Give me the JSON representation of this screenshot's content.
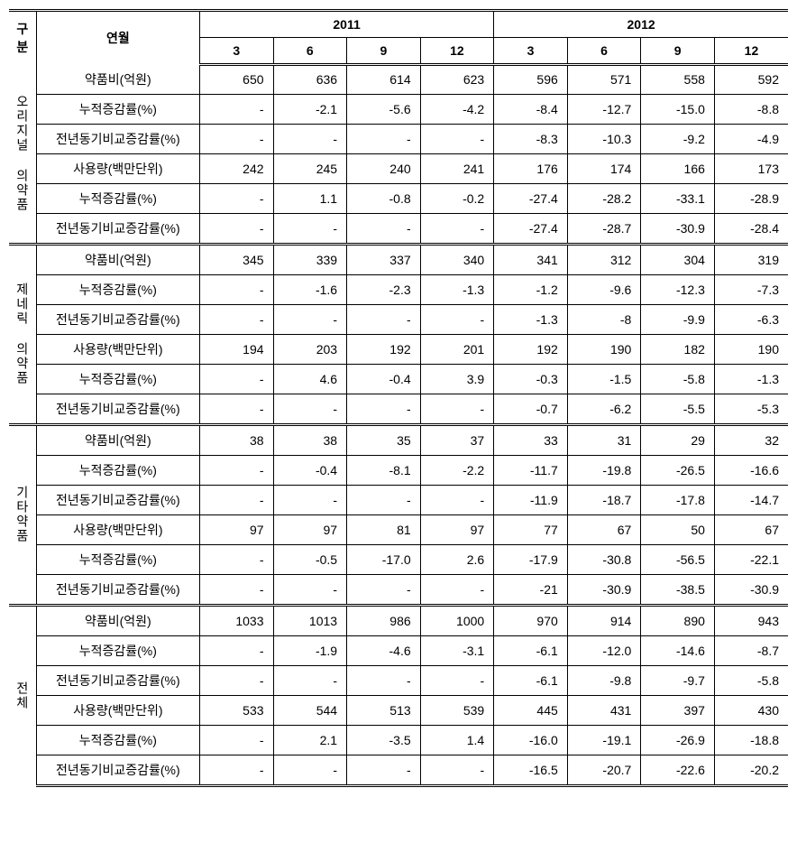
{
  "header": {
    "group_label": "구분",
    "metric_label": "연월",
    "years": [
      "2011",
      "2012"
    ],
    "months": [
      "3",
      "6",
      "9",
      "12",
      "3",
      "6",
      "9",
      "12"
    ]
  },
  "metrics": [
    "약품비(억원)",
    "누적증감률(%)",
    "전년동기비교증감률(%)",
    "사용량(백만단위)",
    "누적증감률(%)",
    "전년동기비교증감률(%)"
  ],
  "groups": [
    {
      "name": "오리지널 의약품",
      "rows": [
        [
          "650",
          "636",
          "614",
          "623",
          "596",
          "571",
          "558",
          "592"
        ],
        [
          "-",
          "-2.1",
          "-5.6",
          "-4.2",
          "-8.4",
          "-12.7",
          "-15.0",
          "-8.8"
        ],
        [
          "-",
          "-",
          "-",
          "-",
          "-8.3",
          "-10.3",
          "-9.2",
          "-4.9"
        ],
        [
          "242",
          "245",
          "240",
          "241",
          "176",
          "174",
          "166",
          "173"
        ],
        [
          "-",
          "1.1",
          "-0.8",
          "-0.2",
          "-27.4",
          "-28.2",
          "-33.1",
          "-28.9"
        ],
        [
          "-",
          "-",
          "-",
          "-",
          "-27.4",
          "-28.7",
          "-30.9",
          "-28.4"
        ]
      ]
    },
    {
      "name": "제네릭 의약품",
      "rows": [
        [
          "345",
          "339",
          "337",
          "340",
          "341",
          "312",
          "304",
          "319"
        ],
        [
          "-",
          "-1.6",
          "-2.3",
          "-1.3",
          "-1.2",
          "-9.6",
          "-12.3",
          "-7.3"
        ],
        [
          "-",
          "-",
          "-",
          "-",
          "-1.3",
          "-8",
          "-9.9",
          "-6.3"
        ],
        [
          "194",
          "203",
          "192",
          "201",
          "192",
          "190",
          "182",
          "190"
        ],
        [
          "-",
          "4.6",
          "-0.4",
          "3.9",
          "-0.3",
          "-1.5",
          "-5.8",
          "-1.3"
        ],
        [
          "-",
          "-",
          "-",
          "-",
          "-0.7",
          "-6.2",
          "-5.5",
          "-5.3"
        ]
      ]
    },
    {
      "name": "기타약품",
      "rows": [
        [
          "38",
          "38",
          "35",
          "37",
          "33",
          "31",
          "29",
          "32"
        ],
        [
          "-",
          "-0.4",
          "-8.1",
          "-2.2",
          "-11.7",
          "-19.8",
          "-26.5",
          "-16.6"
        ],
        [
          "-",
          "-",
          "-",
          "-",
          "-11.9",
          "-18.7",
          "-17.8",
          "-14.7"
        ],
        [
          "97",
          "97",
          "81",
          "97",
          "77",
          "67",
          "50",
          "67"
        ],
        [
          "-",
          "-0.5",
          "-17.0",
          "2.6",
          "-17.9",
          "-30.8",
          "-56.5",
          "-22.1"
        ],
        [
          "-",
          "-",
          "-",
          "-",
          "-21",
          "-30.9",
          "-38.5",
          "-30.9"
        ]
      ]
    },
    {
      "name": "전체",
      "rows": [
        [
          "1033",
          "1013",
          "986",
          "1000",
          "970",
          "914",
          "890",
          "943"
        ],
        [
          "-",
          "-1.9",
          "-4.6",
          "-3.1",
          "-6.1",
          "-12.0",
          "-14.6",
          "-8.7"
        ],
        [
          "-",
          "-",
          "-",
          "-",
          "-6.1",
          "-9.8",
          "-9.7",
          "-5.8"
        ],
        [
          "533",
          "544",
          "513",
          "539",
          "445",
          "431",
          "397",
          "430"
        ],
        [
          "-",
          "2.1",
          "-3.5",
          "1.4",
          "-16.0",
          "-19.1",
          "-26.9",
          "-18.8"
        ],
        [
          "-",
          "-",
          "-",
          "-",
          "-16.5",
          "-20.7",
          "-22.6",
          "-20.2"
        ]
      ]
    }
  ],
  "style": {
    "font_size": 14,
    "border_color": "#000000",
    "background": "#ffffff",
    "text_color": "#000000"
  }
}
